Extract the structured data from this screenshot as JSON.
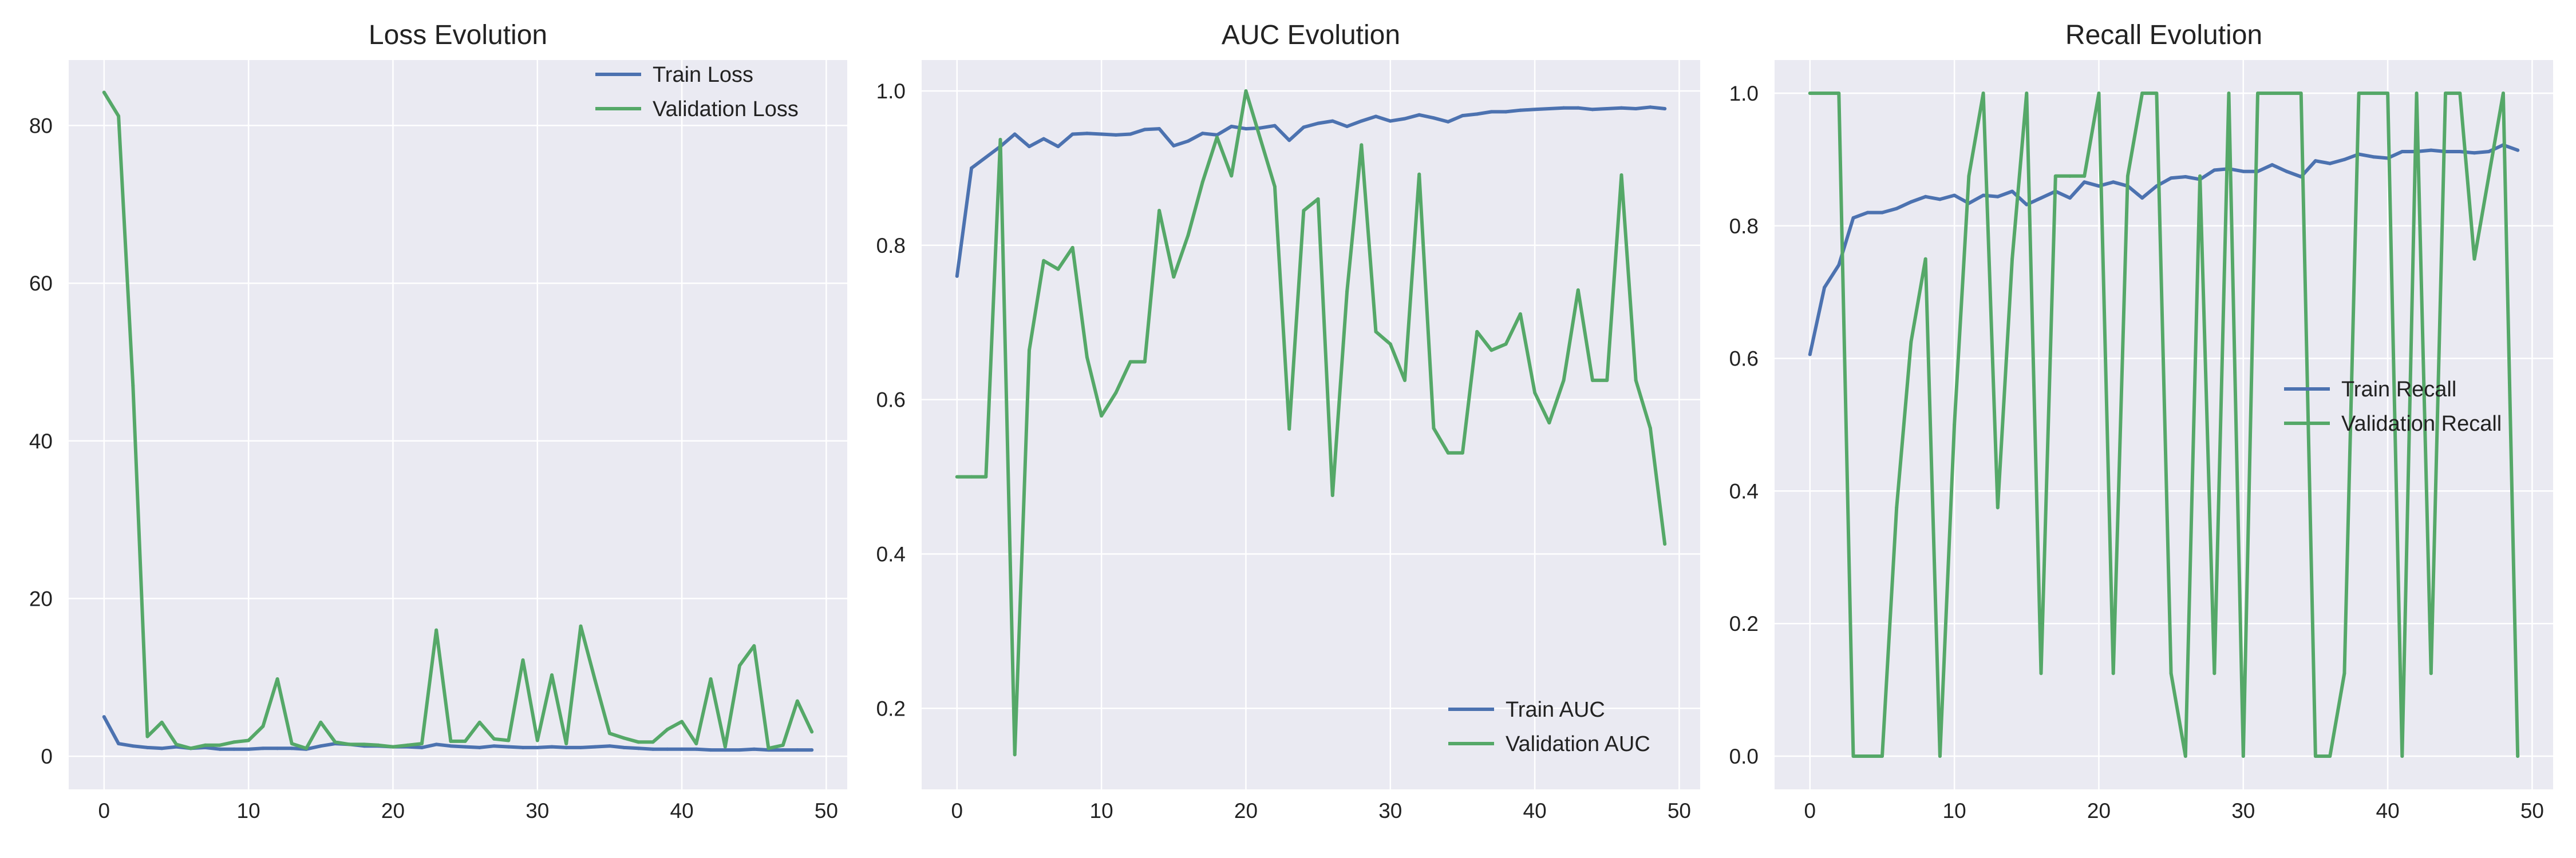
{
  "colors": {
    "panel_bg": "#eaeaf2",
    "grid": "#ffffff",
    "train": "#4c72b0",
    "validation": "#55a868",
    "text": "#222222"
  },
  "chart_data": [
    {
      "type": "line",
      "title": "Loss Evolution",
      "xlabel": "",
      "ylabel": "",
      "xlim": [
        -2.45,
        51.45
      ],
      "ylim": [
        -4.2,
        88.3
      ],
      "xticks": [
        0,
        10,
        20,
        30,
        40,
        50
      ],
      "yticks": [
        0,
        20,
        40,
        60,
        80
      ],
      "ytick_labels": [
        "0",
        "20",
        "40",
        "60",
        "80"
      ],
      "grid": true,
      "legend": "top-right",
      "x": [
        0,
        1,
        2,
        3,
        4,
        5,
        6,
        7,
        8,
        9,
        10,
        11,
        12,
        13,
        14,
        15,
        16,
        17,
        18,
        19,
        20,
        21,
        22,
        23,
        24,
        25,
        26,
        27,
        28,
        29,
        30,
        31,
        32,
        33,
        34,
        35,
        36,
        37,
        38,
        39,
        40,
        41,
        42,
        43,
        44,
        45,
        46,
        47,
        48,
        49
      ],
      "series": [
        {
          "name": "Train Loss",
          "color_key": "train",
          "values": [
            5.0,
            1.6,
            1.3,
            1.1,
            1.0,
            1.2,
            1.0,
            1.1,
            0.9,
            0.9,
            0.9,
            1.0,
            1.0,
            1.0,
            0.9,
            1.3,
            1.6,
            1.5,
            1.3,
            1.3,
            1.2,
            1.2,
            1.1,
            1.5,
            1.3,
            1.2,
            1.1,
            1.3,
            1.2,
            1.1,
            1.1,
            1.2,
            1.1,
            1.1,
            1.2,
            1.3,
            1.1,
            1.0,
            0.9,
            0.9,
            0.9,
            0.9,
            0.8,
            0.8,
            0.8,
            0.9,
            0.8,
            0.8,
            0.8,
            0.8
          ]
        },
        {
          "name": "Validation Loss",
          "color_key": "validation",
          "values": [
            84.2,
            81.2,
            47.0,
            2.5,
            4.3,
            1.5,
            1.0,
            1.4,
            1.4,
            1.8,
            2.0,
            3.8,
            9.8,
            1.6,
            1.0,
            4.3,
            1.8,
            1.5,
            1.5,
            1.4,
            1.2,
            1.4,
            1.6,
            16.0,
            1.9,
            1.9,
            4.3,
            2.2,
            2.0,
            12.2,
            2.0,
            10.3,
            1.6,
            16.5,
            9.6,
            2.9,
            2.3,
            1.8,
            1.8,
            3.4,
            4.4,
            1.6,
            9.8,
            1.2,
            11.5,
            14.0,
            1.0,
            1.4,
            7.0,
            3.1
          ]
        }
      ]
    },
    {
      "type": "line",
      "title": "AUC Evolution",
      "xlabel": "",
      "ylabel": "",
      "xlim": [
        -2.45,
        51.45
      ],
      "ylim": [
        0.095,
        1.04
      ],
      "xticks": [
        0,
        10,
        20,
        30,
        40,
        50
      ],
      "yticks": [
        0.2,
        0.4,
        0.6,
        0.8,
        1.0
      ],
      "ytick_labels": [
        "0.2",
        "0.4",
        "0.6",
        "0.8",
        "1.0"
      ],
      "grid": true,
      "legend": "bottom-right",
      "x": [
        0,
        1,
        2,
        3,
        4,
        5,
        6,
        7,
        8,
        9,
        10,
        11,
        12,
        13,
        14,
        15,
        16,
        17,
        18,
        19,
        20,
        21,
        22,
        23,
        24,
        25,
        26,
        27,
        28,
        29,
        30,
        31,
        32,
        33,
        34,
        35,
        36,
        37,
        38,
        39,
        40,
        41,
        42,
        43,
        44,
        45,
        46,
        47,
        48,
        49
      ],
      "series": [
        {
          "name": "Train AUC",
          "color_key": "train",
          "values": [
            0.76,
            0.9,
            0.914,
            0.928,
            0.944,
            0.928,
            0.938,
            0.928,
            0.944,
            0.945,
            0.944,
            0.943,
            0.944,
            0.95,
            0.951,
            0.929,
            0.935,
            0.945,
            0.943,
            0.954,
            0.951,
            0.952,
            0.955,
            0.936,
            0.953,
            0.958,
            0.961,
            0.954,
            0.961,
            0.967,
            0.961,
            0.964,
            0.969,
            0.965,
            0.96,
            0.968,
            0.97,
            0.973,
            0.973,
            0.975,
            0.976,
            0.977,
            0.978,
            0.978,
            0.976,
            0.977,
            0.978,
            0.977,
            0.979,
            0.977
          ]
        },
        {
          "name": "Validation AUC",
          "color_key": "validation",
          "values": [
            0.5,
            0.5,
            0.5,
            0.937,
            0.14,
            0.664,
            0.78,
            0.769,
            0.797,
            0.655,
            0.579,
            0.609,
            0.649,
            0.649,
            0.845,
            0.759,
            0.813,
            0.882,
            0.94,
            0.89,
            1.0,
            0.938,
            0.876,
            0.562,
            0.845,
            0.86,
            0.476,
            0.74,
            0.93,
            0.688,
            0.672,
            0.625,
            0.892,
            0.563,
            0.531,
            0.531,
            0.688,
            0.664,
            0.672,
            0.711,
            0.609,
            0.57,
            0.625,
            0.742,
            0.625,
            0.625,
            0.891,
            0.625,
            0.563,
            0.413
          ]
        }
      ]
    },
    {
      "type": "line",
      "title": "Recall Evolution",
      "xlabel": "",
      "ylabel": "",
      "xlim": [
        -2.45,
        51.45
      ],
      "ylim": [
        -0.05,
        1.05
      ],
      "xticks": [
        0,
        10,
        20,
        30,
        40,
        50
      ],
      "yticks": [
        0.0,
        0.2,
        0.4,
        0.6,
        0.8,
        1.0
      ],
      "ytick_labels": [
        "0.0",
        "0.2",
        "0.4",
        "0.6",
        "0.8",
        "1.0"
      ],
      "grid": true,
      "legend": "center-right",
      "x": [
        0,
        1,
        2,
        3,
        4,
        5,
        6,
        7,
        8,
        9,
        10,
        11,
        12,
        13,
        14,
        15,
        16,
        17,
        18,
        19,
        20,
        21,
        22,
        23,
        24,
        25,
        26,
        27,
        28,
        29,
        30,
        31,
        32,
        33,
        34,
        35,
        36,
        37,
        38,
        39,
        40,
        41,
        42,
        43,
        44,
        45,
        46,
        47,
        48,
        49
      ],
      "series": [
        {
          "name": "Train Recall",
          "color_key": "train",
          "values": [
            0.606,
            0.707,
            0.741,
            0.812,
            0.82,
            0.82,
            0.826,
            0.836,
            0.844,
            0.84,
            0.846,
            0.834,
            0.846,
            0.844,
            0.852,
            0.832,
            0.842,
            0.852,
            0.842,
            0.866,
            0.86,
            0.866,
            0.86,
            0.842,
            0.86,
            0.872,
            0.874,
            0.87,
            0.884,
            0.886,
            0.882,
            0.882,
            0.892,
            0.882,
            0.874,
            0.898,
            0.894,
            0.9,
            0.908,
            0.904,
            0.902,
            0.912,
            0.912,
            0.914,
            0.912,
            0.912,
            0.91,
            0.912,
            0.922,
            0.914
          ]
        },
        {
          "name": "Validation Recall",
          "color_key": "validation",
          "values": [
            1.0,
            1.0,
            1.0,
            0.0,
            0.0,
            0.0,
            0.375,
            0.625,
            0.75,
            0.0,
            0.5,
            0.875,
            1.0,
            0.375,
            0.75,
            1.0,
            0.125,
            0.875,
            0.875,
            0.875,
            1.0,
            0.125,
            0.875,
            1.0,
            1.0,
            0.125,
            0.0,
            0.875,
            0.125,
            1.0,
            0.0,
            1.0,
            1.0,
            1.0,
            1.0,
            0.0,
            0.0,
            0.125,
            1.0,
            1.0,
            1.0,
            0.0,
            1.0,
            0.125,
            1.0,
            1.0,
            0.75,
            0.875,
            1.0,
            0.0
          ]
        }
      ]
    }
  ]
}
